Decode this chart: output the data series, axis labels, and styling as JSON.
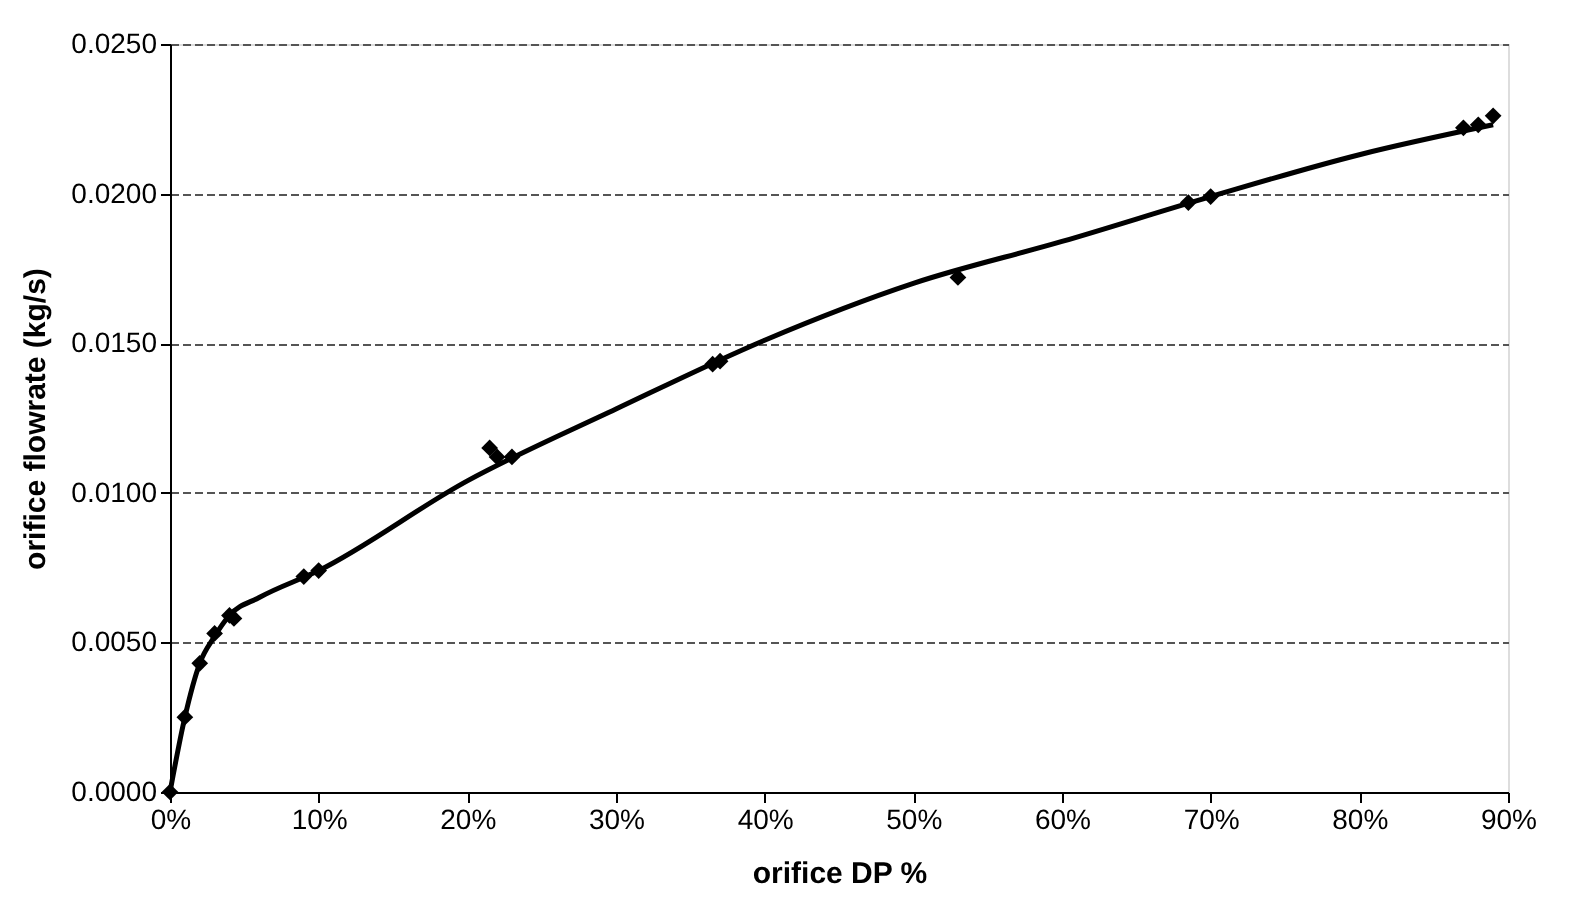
{
  "chart_data": {
    "type": "scatter",
    "xlabel": "orifice DP %",
    "ylabel": "orifice flowrate (kg/s)",
    "xlim": [
      0,
      90
    ],
    "ylim": [
      0,
      0.025
    ],
    "xticks": [
      {
        "value": 0,
        "label": "0%"
      },
      {
        "value": 10,
        "label": "10%"
      },
      {
        "value": 20,
        "label": "20%"
      },
      {
        "value": 30,
        "label": "30%"
      },
      {
        "value": 40,
        "label": "40%"
      },
      {
        "value": 50,
        "label": "50%"
      },
      {
        "value": 60,
        "label": "60%"
      },
      {
        "value": 70,
        "label": "70%"
      },
      {
        "value": 80,
        "label": "80%"
      },
      {
        "value": 90,
        "label": "90%"
      }
    ],
    "yticks": [
      {
        "value": 0,
        "label": "0.0000"
      },
      {
        "value": 0.005,
        "label": "0.0050"
      },
      {
        "value": 0.01,
        "label": "0.0100"
      },
      {
        "value": 0.015,
        "label": "0.0150"
      },
      {
        "value": 0.02,
        "label": "0.0200"
      },
      {
        "value": 0.025,
        "label": "0.0250"
      }
    ],
    "grid": "y",
    "series": [
      {
        "marker": "diamond",
        "color": "#000000",
        "x": [
          0,
          1,
          2,
          3,
          4,
          4.3,
          9,
          10,
          21.5,
          22,
          23,
          36.5,
          37,
          53,
          68.5,
          70,
          87,
          88,
          89
        ],
        "values": [
          0,
          0.0025,
          0.0043,
          0.0053,
          0.0059,
          0.0058,
          0.0072,
          0.0074,
          0.0115,
          0.0112,
          0.0112,
          0.0143,
          0.0144,
          0.0172,
          0.0197,
          0.0199,
          0.0222,
          0.0223,
          0.0226
        ]
      },
      {
        "type": "line",
        "marker": "none",
        "line_style": "solid",
        "color": "#000000",
        "x": [
          0,
          1,
          2,
          3,
          4,
          6,
          10,
          20,
          30,
          40,
          50,
          60,
          70,
          80,
          89
        ],
        "values": [
          0,
          0.0025,
          0.0043,
          0.0052,
          0.0059,
          0.0065,
          0.0074,
          0.0104,
          0.0128,
          0.0151,
          0.017,
          0.0184,
          0.0199,
          0.0213,
          0.0223
        ]
      }
    ]
  }
}
